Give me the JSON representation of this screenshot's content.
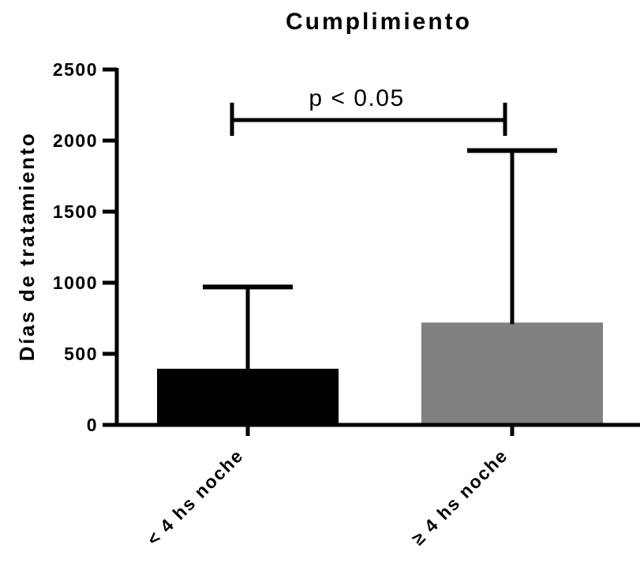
{
  "chart_data": {
    "type": "bar",
    "title": "Cumplimiento",
    "xlabel": "",
    "ylabel": "Días de tratamiento",
    "ylim": [
      0,
      2500
    ],
    "yticks": [
      "0",
      "500",
      "1000",
      "1500",
      "2000",
      "2500"
    ],
    "categories": [
      "< 4 hs noche",
      "≥ 4 hs noche"
    ],
    "values": [
      395,
      720
    ],
    "error_upper": [
      970,
      1930
    ],
    "colors": [
      "#000000",
      "#808080"
    ],
    "grid": false,
    "legend": "none",
    "annotation": {
      "text": "p < 0.05",
      "between": [
        0,
        1
      ]
    }
  }
}
